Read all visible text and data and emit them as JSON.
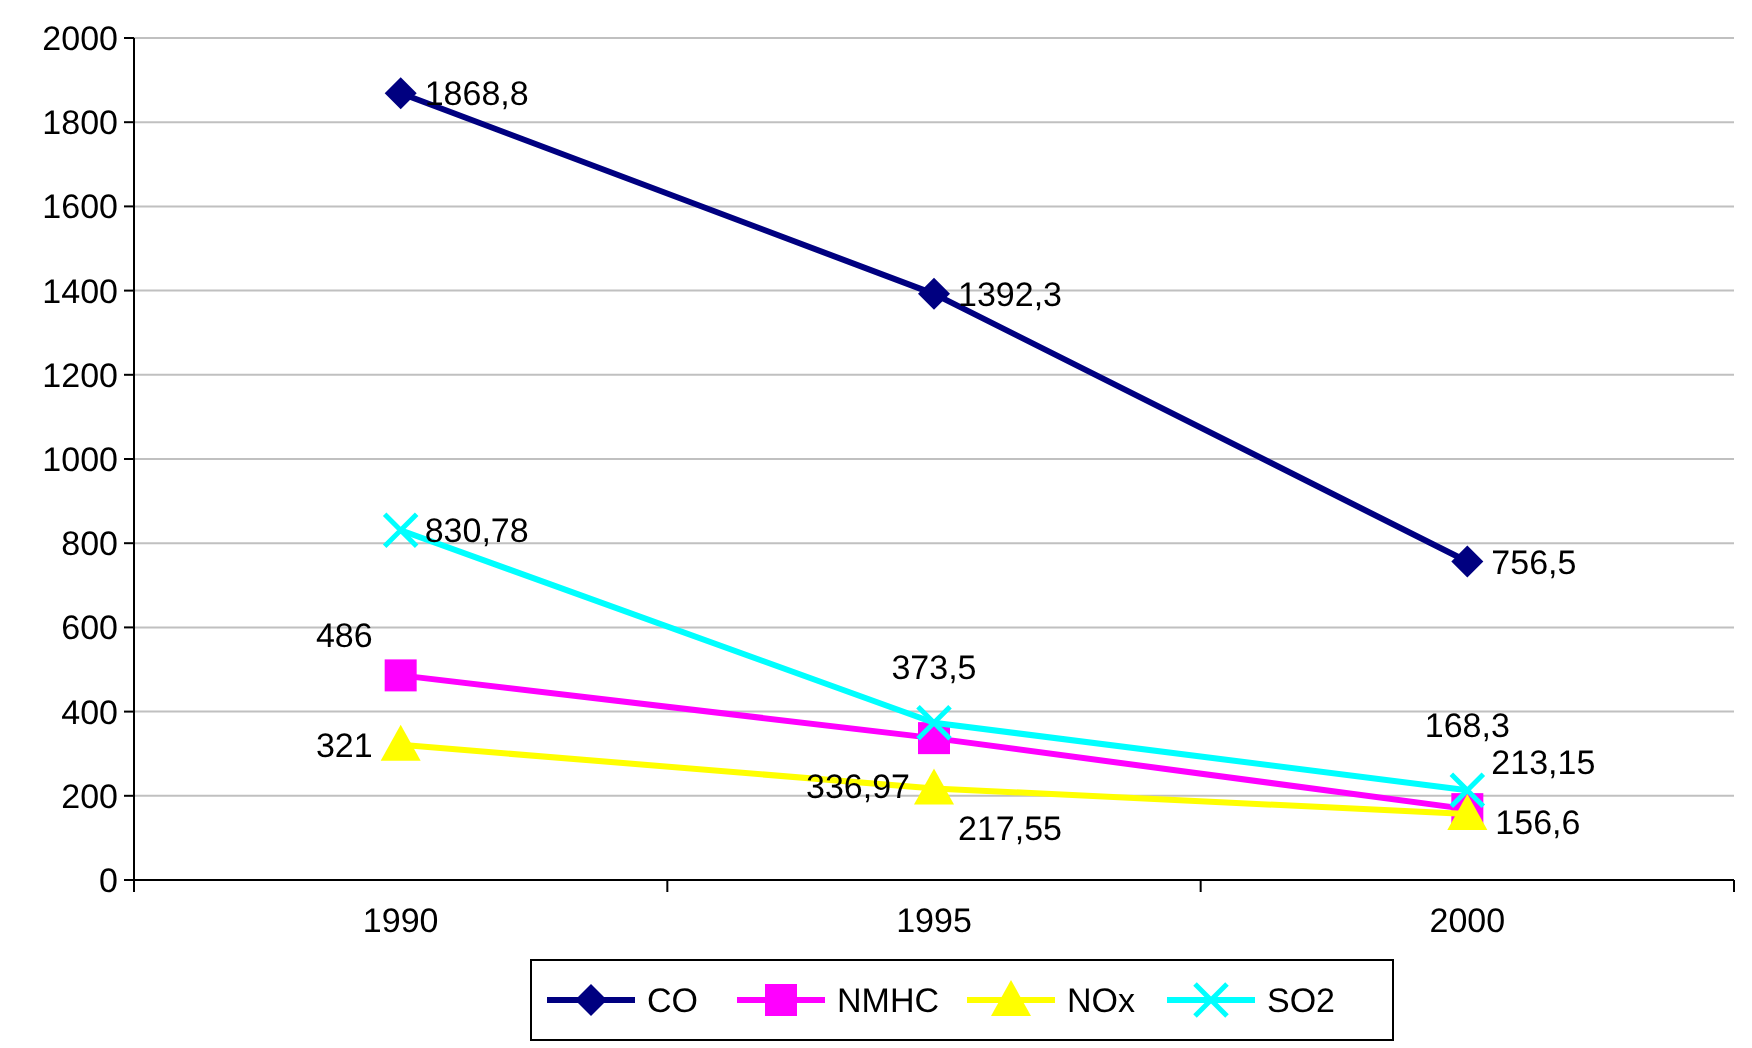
{
  "chart_data": {
    "type": "line",
    "categories": [
      "1990",
      "1995",
      "2000"
    ],
    "series": [
      {
        "name": "CO",
        "color": "#000080",
        "marker": "diamond",
        "values": [
          1868.8,
          1392.3,
          756.5
        ],
        "value_labels": [
          "1868,8",
          "1392,3",
          "756,5"
        ]
      },
      {
        "name": "NMHC",
        "color": "#ff00ff",
        "marker": "square",
        "values": [
          486,
          336.97,
          168.3
        ],
        "value_labels": [
          "486",
          "336,97",
          "168,3"
        ]
      },
      {
        "name": "NOx",
        "color": "#ffff00",
        "marker": "triangle",
        "values": [
          321,
          217.55,
          156.6
        ],
        "value_labels": [
          "321",
          "217,55",
          "156,6"
        ]
      },
      {
        "name": "SO2",
        "color": "#00ffff",
        "marker": "cross",
        "values": [
          830.78,
          373.5,
          213.15
        ],
        "value_labels": [
          "830,78",
          "373,5",
          "213,15"
        ]
      }
    ],
    "ylim": [
      0,
      2000
    ],
    "yticks": [
      0,
      200,
      400,
      600,
      800,
      1000,
      1200,
      1400,
      1600,
      1800,
      2000
    ],
    "grid": "y",
    "legend": "bottom"
  }
}
